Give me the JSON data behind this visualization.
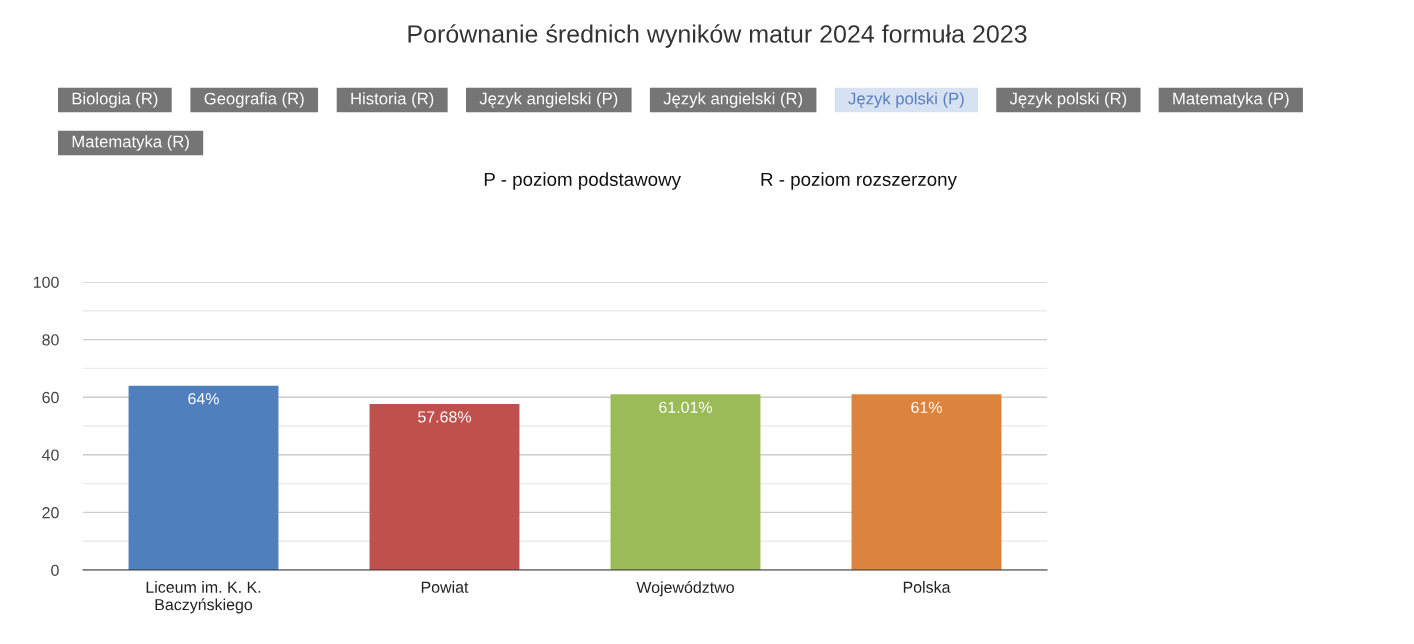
{
  "chart_data": {
    "type": "bar",
    "title": "Porównanie średnich wyników matur 2024 formuła 2023",
    "categories": [
      "Liceum im. K. K.\nBaczyńskiego",
      "Powiat",
      "Województwo",
      "Polska"
    ],
    "values": [
      64,
      57.68,
      61.01,
      61
    ],
    "colors": [
      "#4f7fbc",
      "#c0504d",
      "#9bbb59",
      "#dc843e"
    ],
    "value_labels": [
      "64%",
      "57.68%",
      "61.01%",
      "61%"
    ],
    "ylim": [
      0,
      100
    ],
    "yticks": [
      0,
      {
        "value": 10,
        "label": null
      },
      20,
      {
        "value": 30,
        "label": null
      },
      40,
      {
        "value": 50,
        "label": null
      },
      60,
      {
        "value": 70,
        "label": null
      },
      80,
      {
        "value": 90,
        "label": null
      },
      100
    ],
    "grid": "y",
    "annotations": [
      "Biologia (R)",
      "Geografia (R)",
      "Historia (R)",
      "Język angielski (P)",
      "Język angielski (R)",
      "Język polski (P)",
      "Język polski (R)",
      "Matematyka (P)",
      "Matematyka (R)",
      "P - poziom podstawowy",
      "R - poziom rozszerzony"
    ]
  }
}
